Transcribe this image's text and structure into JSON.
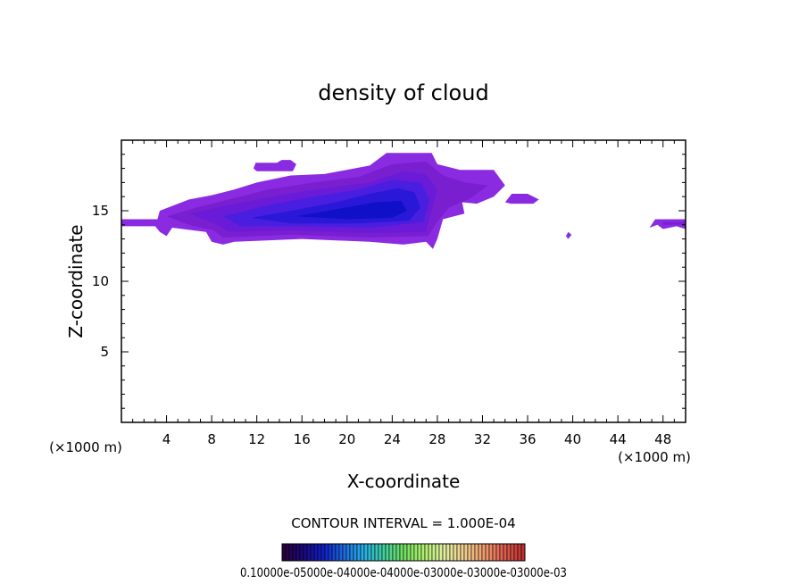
{
  "chart_data": {
    "type": "heatmap",
    "title": "density of cloud",
    "xlabel": "X-coordinate",
    "ylabel": "Z-coordinate",
    "x_unit_left": "(×1000 m)",
    "x_unit_right": "(×1000 m)",
    "xlim": [
      0,
      50
    ],
    "ylim": [
      0,
      20
    ],
    "x_ticks": [
      4,
      8,
      12,
      16,
      20,
      24,
      28,
      32,
      36,
      40,
      44,
      48
    ],
    "y_ticks": [
      5,
      10,
      15
    ],
    "contour_interval_text": "CONTOUR INTERVAL = 1.000E-04",
    "colorbar_labels_text": "0.10000e-05000e-04000e-04000e-03000e-03000e-03000e-03",
    "regions": [
      {
        "level": "edge",
        "color": "#8a2be2",
        "points": [
          [
            0,
            13.9
          ],
          [
            0,
            14.4
          ],
          [
            3.2,
            14.4
          ],
          [
            3.4,
            15.0
          ],
          [
            6.0,
            15.8
          ],
          [
            8.0,
            16.1
          ],
          [
            10.0,
            16.5
          ],
          [
            12.0,
            17.0
          ],
          [
            15.0,
            17.5
          ],
          [
            18.0,
            17.6
          ],
          [
            22.0,
            18.2
          ],
          [
            23.5,
            19.1
          ],
          [
            27.5,
            19.1
          ],
          [
            28.0,
            18.3
          ],
          [
            30.0,
            17.9
          ],
          [
            33.0,
            17.9
          ],
          [
            34.0,
            16.8
          ],
          [
            33.0,
            16.0
          ],
          [
            31.5,
            15.5
          ],
          [
            30.2,
            15.6
          ],
          [
            30.4,
            14.8
          ],
          [
            28.5,
            14.4
          ],
          [
            28.0,
            13.0
          ],
          [
            27.6,
            12.3
          ],
          [
            27.0,
            12.8
          ],
          [
            25.0,
            12.6
          ],
          [
            22.0,
            12.8
          ],
          [
            16.0,
            13.0
          ],
          [
            10.0,
            12.8
          ],
          [
            9.0,
            12.6
          ],
          [
            8.0,
            12.8
          ],
          [
            7.5,
            13.5
          ],
          [
            4.5,
            13.8
          ],
          [
            4.0,
            13.2
          ],
          [
            3.4,
            13.5
          ],
          [
            3.0,
            13.9
          ]
        ]
      },
      {
        "level": "low",
        "color": "#7a1fd0",
        "points": [
          [
            4.0,
            14.6
          ],
          [
            7.0,
            15.3
          ],
          [
            10.0,
            15.9
          ],
          [
            13.0,
            16.5
          ],
          [
            17.0,
            17.0
          ],
          [
            21.0,
            17.4
          ],
          [
            24.0,
            18.3
          ],
          [
            27.0,
            18.5
          ],
          [
            28.5,
            17.5
          ],
          [
            30.5,
            17.0
          ],
          [
            32.5,
            16.8
          ],
          [
            31.0,
            15.9
          ],
          [
            29.0,
            15.2
          ],
          [
            27.8,
            14.0
          ],
          [
            27.2,
            13.2
          ],
          [
            22.0,
            13.1
          ],
          [
            15.0,
            13.3
          ],
          [
            9.0,
            13.1
          ],
          [
            8.2,
            13.6
          ],
          [
            6.0,
            14.0
          ]
        ]
      },
      {
        "level": "mid-low",
        "color": "#6a1bd8",
        "points": [
          [
            6.0,
            14.8
          ],
          [
            10.0,
            15.5
          ],
          [
            14.0,
            16.1
          ],
          [
            18.0,
            16.6
          ],
          [
            22.0,
            17.0
          ],
          [
            25.0,
            17.8
          ],
          [
            27.0,
            17.6
          ],
          [
            28.0,
            16.5
          ],
          [
            27.5,
            15.0
          ],
          [
            27.0,
            13.5
          ],
          [
            22.0,
            13.4
          ],
          [
            15.0,
            13.6
          ],
          [
            9.5,
            13.5
          ],
          [
            8.5,
            14.0
          ]
        ]
      },
      {
        "level": "mid",
        "color": "#4a1ee0",
        "points": [
          [
            9.0,
            14.6
          ],
          [
            13.0,
            15.4
          ],
          [
            17.0,
            16.0
          ],
          [
            21.0,
            16.5
          ],
          [
            24.0,
            17.2
          ],
          [
            26.5,
            17.0
          ],
          [
            27.3,
            15.8
          ],
          [
            26.8,
            14.2
          ],
          [
            22.0,
            13.8
          ],
          [
            16.0,
            13.9
          ],
          [
            10.5,
            13.9
          ]
        ]
      },
      {
        "level": "high",
        "color": "#2a18d8",
        "points": [
          [
            11.5,
            14.5
          ],
          [
            15.0,
            15.0
          ],
          [
            19.0,
            15.6
          ],
          [
            22.0,
            16.2
          ],
          [
            24.5,
            16.6
          ],
          [
            26.0,
            16.3
          ],
          [
            26.5,
            15.2
          ],
          [
            25.5,
            14.3
          ],
          [
            21.0,
            14.1
          ],
          [
            15.0,
            14.1
          ]
        ]
      },
      {
        "level": "peak",
        "color": "#1010c8",
        "points": [
          [
            15.5,
            14.6
          ],
          [
            19.0,
            15.1
          ],
          [
            22.5,
            15.6
          ],
          [
            24.8,
            15.7
          ],
          [
            25.3,
            15.0
          ],
          [
            24.0,
            14.5
          ],
          [
            20.0,
            14.4
          ]
        ]
      },
      {
        "level": "edge",
        "color": "#8a2be2",
        "points": [
          [
            11.7,
            18.0
          ],
          [
            11.9,
            18.4
          ],
          [
            13.8,
            18.4
          ],
          [
            14.2,
            18.6
          ],
          [
            15.0,
            18.6
          ],
          [
            15.5,
            18.3
          ],
          [
            15.2,
            17.8
          ],
          [
            12.0,
            17.8
          ]
        ]
      },
      {
        "level": "edge",
        "color": "#8a2be2",
        "points": [
          [
            34.0,
            15.6
          ],
          [
            34.6,
            16.2
          ],
          [
            36.0,
            16.2
          ],
          [
            37.0,
            15.8
          ],
          [
            36.5,
            15.5
          ],
          [
            34.5,
            15.5
          ]
        ]
      },
      {
        "level": "edge",
        "color": "#8a2be2",
        "points": [
          [
            39.4,
            13.2
          ],
          [
            39.6,
            13.5
          ],
          [
            39.9,
            13.3
          ],
          [
            39.6,
            13.0
          ]
        ]
      },
      {
        "level": "edge",
        "color": "#8a2be2",
        "points": [
          [
            46.8,
            13.8
          ],
          [
            47.3,
            14.4
          ],
          [
            50,
            14.4
          ],
          [
            50,
            13.7
          ],
          [
            49.2,
            13.9
          ],
          [
            48.0,
            13.7
          ],
          [
            47.5,
            14.0
          ]
        ]
      },
      {
        "level": "low",
        "color": "#7a1fd0",
        "points": [
          [
            48.0,
            14.0
          ],
          [
            50,
            14.0
          ],
          [
            50,
            14.2
          ],
          [
            48.0,
            14.2
          ]
        ]
      }
    ],
    "colorbar_colors": [
      "#2b003f",
      "#1a0a80",
      "#1020c8",
      "#1e6ae0",
      "#27b0e8",
      "#40d0a0",
      "#70e060",
      "#b0f070",
      "#e0f0a0",
      "#f0d090",
      "#f0a070",
      "#e06050",
      "#c03030"
    ]
  }
}
